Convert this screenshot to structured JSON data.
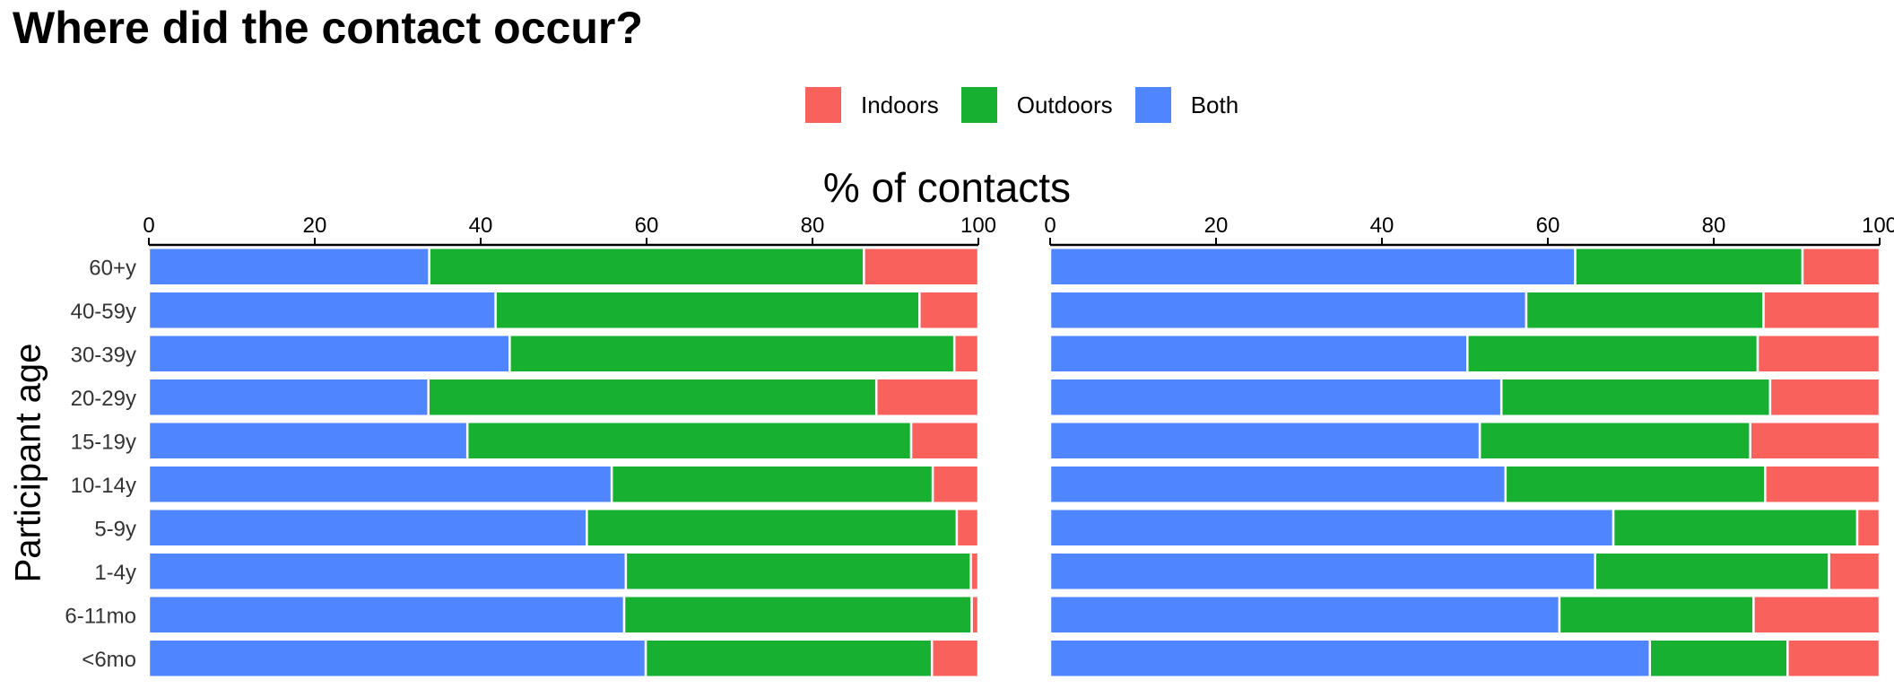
{
  "chart_data": {
    "type": "bar",
    "orientation": "horizontal",
    "stacked": true,
    "title": "Where did the contact occur?",
    "xlabel": "% of contacts",
    "ylabel": "Participant age",
    "xlim": [
      0,
      100
    ],
    "xticks": [
      "0",
      "20",
      "40",
      "60",
      "80",
      "100"
    ],
    "categories": [
      "60+y",
      "40-59y",
      "30-39y",
      "20-29y",
      "15-19y",
      "10-14y",
      "5-9y",
      "1-4y",
      "6-11mo",
      "<6mo"
    ],
    "legend": [
      {
        "label": "Indoors",
        "color": "#F8615C"
      },
      {
        "label": "Outdoors",
        "color": "#18B030"
      },
      {
        "label": "Both",
        "color": "#4F86FF"
      }
    ],
    "legend_position": "top-center",
    "grid": false,
    "panels": [
      {
        "series": [
          {
            "name": "Both",
            "values": [
              33.8,
              41.8,
              43.5,
              33.7,
              38.4,
              55.8,
              52.8,
              57.5,
              57.3,
              59.9
            ]
          },
          {
            "name": "Outdoors",
            "values": [
              52.4,
              51.1,
              53.6,
              54.0,
              53.5,
              38.7,
              44.6,
              41.6,
              41.9,
              34.5
            ]
          },
          {
            "name": "Indoors",
            "values": [
              13.8,
              7.1,
              2.9,
              12.3,
              8.1,
              5.5,
              2.6,
              0.9,
              0.8,
              5.6
            ]
          }
        ]
      },
      {
        "series": [
          {
            "name": "Both",
            "values": [
              63.3,
              57.4,
              50.3,
              54.4,
              51.8,
              54.9,
              67.9,
              65.7,
              61.4,
              72.3
            ]
          },
          {
            "name": "Outdoors",
            "values": [
              27.4,
              28.6,
              35.0,
              32.4,
              32.6,
              31.3,
              29.4,
              28.2,
              23.4,
              16.6
            ]
          },
          {
            "name": "Indoors",
            "values": [
              9.3,
              14.0,
              14.7,
              13.2,
              15.6,
              13.8,
              2.7,
              6.1,
              15.2,
              11.1
            ]
          }
        ]
      }
    ]
  }
}
